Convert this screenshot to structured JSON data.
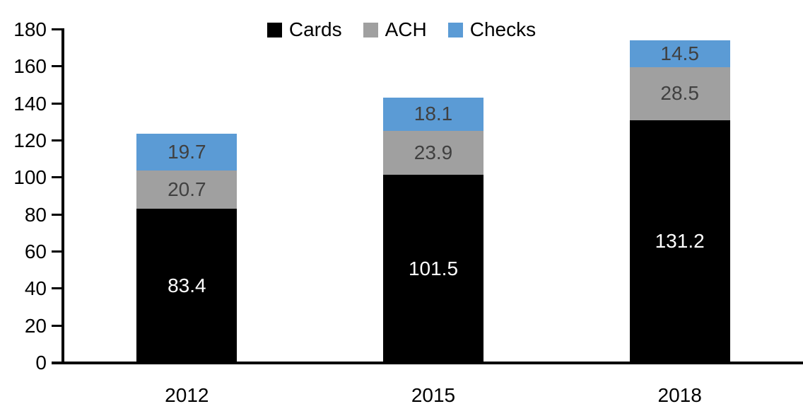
{
  "chart_data": {
    "type": "bar",
    "stacked": true,
    "title": "",
    "xlabel": "",
    "ylabel": "",
    "categories": [
      "2012",
      "2015",
      "2018"
    ],
    "series": [
      {
        "name": "Cards",
        "color": "#000000",
        "label_color": "#ffffff",
        "values": [
          83.4,
          101.5,
          131.2
        ]
      },
      {
        "name": "ACH",
        "color": "#a0a0a0",
        "label_color": "#404040",
        "values": [
          20.7,
          23.9,
          28.5
        ]
      },
      {
        "name": "Checks",
        "color": "#5b9bd5",
        "label_color": "#404040",
        "values": [
          19.7,
          18.1,
          14.5
        ]
      }
    ],
    "ylim": [
      0,
      180
    ],
    "ytick_step": 20,
    "yticks": [
      0,
      20,
      40,
      60,
      80,
      100,
      120,
      140,
      160,
      180
    ],
    "legend_position": "top",
    "legend_labels": [
      "Cards",
      "ACH",
      "Checks"
    ],
    "grid": false,
    "axis_color": "#000000",
    "background_color": "#ffffff",
    "value_decimals": 1
  }
}
